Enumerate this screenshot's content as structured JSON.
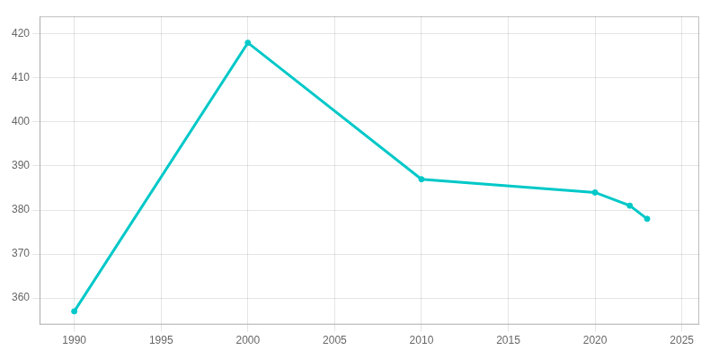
{
  "chart_data": {
    "type": "line",
    "x": [
      1990,
      2000,
      2010,
      2020,
      2022,
      2023
    ],
    "values": [
      357,
      418,
      387,
      384,
      381,
      378
    ],
    "color": "#00C8C8",
    "marker": "circle",
    "xlim": [
      1988,
      2026
    ],
    "ylim": [
      354,
      424
    ],
    "xticks": [
      1990,
      1995,
      2000,
      2005,
      2010,
      2015,
      2020,
      2025
    ],
    "yticks": [
      360,
      370,
      380,
      390,
      400,
      410,
      420
    ],
    "grid": true
  }
}
